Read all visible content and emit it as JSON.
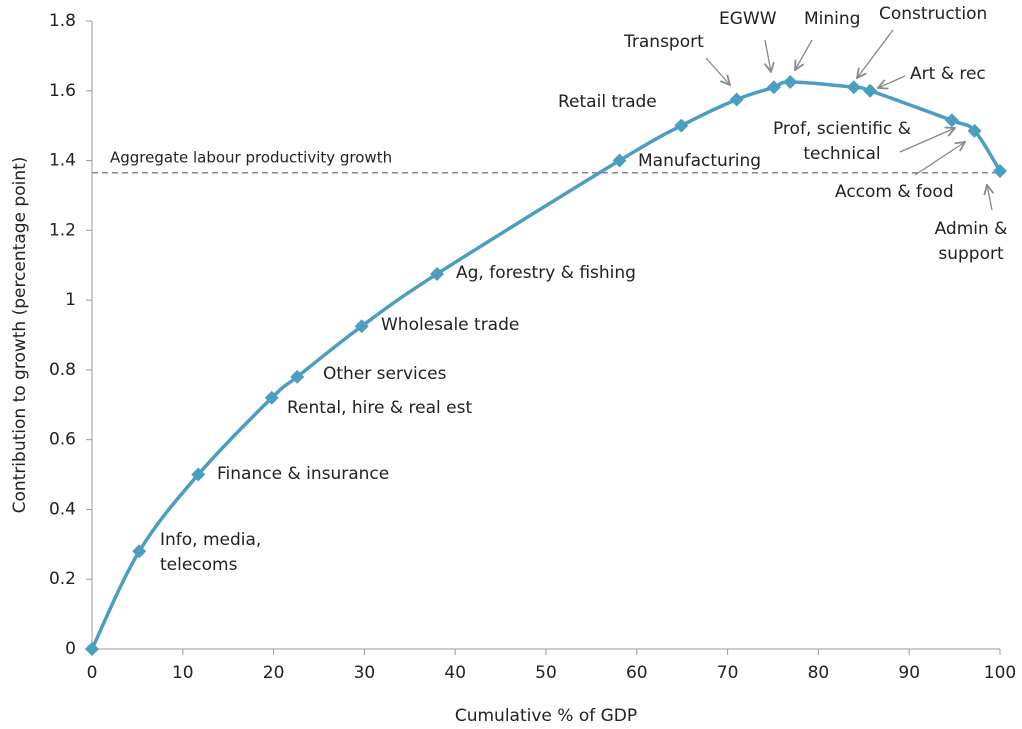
{
  "chart_data": {
    "type": "line",
    "x_label": "Cumulative % of GDP",
    "y_label": "Contribution to growth (percentage point)",
    "x": [
      0,
      5.2,
      11.7,
      19.8,
      22.6,
      29.7,
      38,
      58.1,
      64.9,
      71,
      75.1,
      76.9,
      83.9,
      85.7,
      94.7,
      97.2,
      100
    ],
    "point_labels": [
      null,
      "Info, media, telecoms",
      "Finance & insurance",
      "Rental, hire & real est",
      "Other services",
      "Wholesale trade",
      "Ag, forestry & fishing",
      "Manufacturing",
      "Retail trade",
      "Transport",
      "EGWW",
      "Mining",
      "Construction",
      "Art & rec",
      "Prof, scientific & technical",
      "Accom & food",
      "Admin & support"
    ],
    "series": [
      {
        "color": "#4a9ec0",
        "values": [
          0,
          0.28,
          0.5,
          0.72,
          0.78,
          0.925,
          1.075,
          1.4,
          1.5,
          1.575,
          1.61,
          1.625,
          1.61,
          1.6,
          1.515,
          1.485,
          1.37
        ]
      }
    ],
    "reference_line": {
      "value": 1.365,
      "label": "Aggregate labour productivity growth"
    },
    "xlim": [
      0,
      100
    ],
    "xticks": [
      0,
      10,
      20,
      30,
      40,
      50,
      60,
      70,
      80,
      90,
      100
    ],
    "ylim": [
      0,
      1.8
    ],
    "yticks": [
      0,
      0.2,
      0.4,
      0.6,
      0.8,
      1,
      1.2,
      1.4,
      1.6,
      1.8
    ]
  }
}
